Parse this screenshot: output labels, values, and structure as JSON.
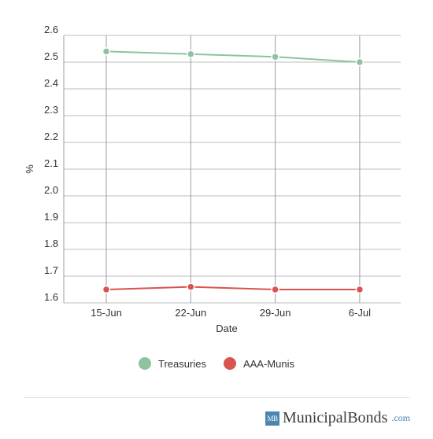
{
  "chart_data": {
    "type": "line",
    "categories": [
      "15-Jun",
      "22-Jun",
      "29-Jun",
      "6-Jul"
    ],
    "series": [
      {
        "name": "Treasuries",
        "values": [
          2.54,
          2.53,
          2.52,
          2.5
        ],
        "color": "#8dc3a0"
      },
      {
        "name": "AAA-Munis",
        "values": [
          1.65,
          1.66,
          1.65,
          1.65
        ],
        "color": "#d9534f"
      }
    ],
    "xlabel": "Date",
    "ylabel": "%",
    "ylim": [
      1.6,
      2.6
    ],
    "yticks": [
      "1.6",
      "1.7",
      "1.8",
      "1.9",
      "2.0",
      "2.1",
      "2.2",
      "2.3",
      "2.4",
      "2.5",
      "2.6"
    ],
    "grid": true,
    "legend_position": "bottom"
  },
  "legend": {
    "items": [
      {
        "label": "Treasuries",
        "color": "#8dc3a0"
      },
      {
        "label": "AAA-Munis",
        "color": "#d9534f"
      }
    ]
  },
  "branding": {
    "logo_box_text": "MB",
    "name": "MunicipalBonds",
    "tld": ".com"
  }
}
